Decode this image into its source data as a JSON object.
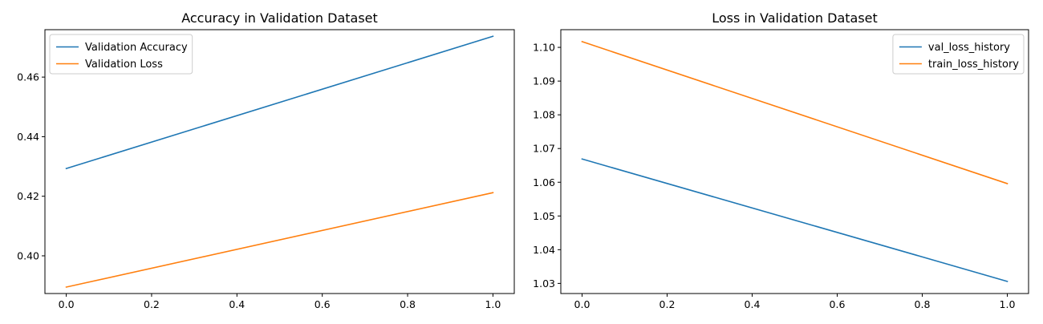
{
  "chart_data": [
    {
      "type": "line",
      "title": "Accuracy in Validation Dataset",
      "xlabel": "",
      "ylabel": "",
      "x": [
        0.0,
        1.0
      ],
      "series": [
        {
          "name": "Validation Accuracy",
          "values": [
            0.4293,
            0.4737
          ],
          "color": "#1f77b4"
        },
        {
          "name": "Validation Loss",
          "values": [
            0.3895,
            0.4212
          ],
          "color": "#ff7f0e"
        }
      ],
      "xlim": [
        -0.05,
        1.05
      ],
      "ylim": [
        0.38734,
        0.47592
      ],
      "xticks": [
        0.0,
        0.2,
        0.4,
        0.6,
        0.8,
        1.0
      ],
      "xtick_labels": [
        "0.0",
        "0.2",
        "0.4",
        "0.6",
        "0.8",
        "1.0"
      ],
      "yticks": [
        0.4,
        0.42,
        0.44,
        0.46
      ],
      "ytick_labels": [
        "0.40",
        "0.42",
        "0.44",
        "0.46"
      ],
      "grid": false,
      "legend_position": "upper-left"
    },
    {
      "type": "line",
      "title": "Loss in Validation Dataset",
      "xlabel": "",
      "ylabel": "",
      "x": [
        0.0,
        1.0
      ],
      "series": [
        {
          "name": "val_loss_history",
          "values": [
            1.0669,
            1.0306
          ],
          "color": "#1f77b4"
        },
        {
          "name": "train_loss_history",
          "values": [
            1.1017,
            1.0596
          ],
          "color": "#ff7f0e"
        }
      ],
      "xlim": [
        -0.05,
        1.05
      ],
      "ylim": [
        1.027,
        1.10525
      ],
      "xticks": [
        0.0,
        0.2,
        0.4,
        0.6,
        0.8,
        1.0
      ],
      "xtick_labels": [
        "0.0",
        "0.2",
        "0.4",
        "0.6",
        "0.8",
        "1.0"
      ],
      "yticks": [
        1.03,
        1.04,
        1.05,
        1.06,
        1.07,
        1.08,
        1.09,
        1.1
      ],
      "ytick_labels": [
        "1.03",
        "1.04",
        "1.05",
        "1.06",
        "1.07",
        "1.08",
        "1.09",
        "1.10"
      ],
      "grid": false,
      "legend_position": "upper-right"
    }
  ]
}
